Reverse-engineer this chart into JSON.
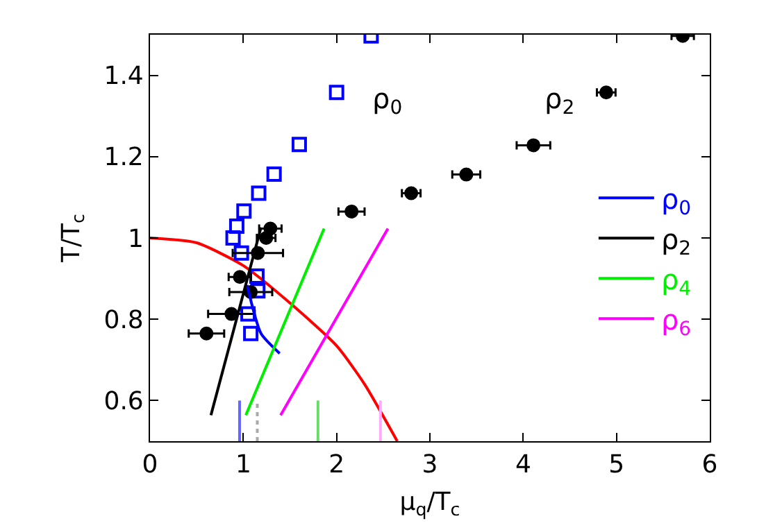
{
  "chart_data": {
    "type": "scatter",
    "xlabel": "μ$_{q}$/T$_{c}$",
    "ylabel": "T/T$_{c}$",
    "xlim": [
      0,
      6
    ],
    "xticks": [
      0,
      1,
      2,
      3,
      4,
      5,
      6
    ],
    "ylim": [
      0.5,
      1.5
    ],
    "yticks": [
      {
        "value": 0.6,
        "label": "0.6"
      },
      {
        "value": 0.8,
        "label": "0.8"
      },
      1,
      {
        "value": 1.2,
        "label": "1.2"
      },
      {
        "value": 1.4,
        "label": "1.4"
      }
    ],
    "legend": "right",
    "series": [
      {
        "type": "line",
        "color": "#ff0000",
        "line_style": "solid",
        "marker": "none",
        "x": [
          0,
          0.5,
          1,
          1.5,
          2,
          2.3,
          2.65
        ],
        "values": [
          1,
          0.988,
          0.932,
          0.84,
          0.735,
          0.64,
          0.5
        ]
      },
      {
        "type": "line",
        "color": "#6666ff",
        "line_style": "solid",
        "marker": "none",
        "x": [
          0.96,
          0.96
        ],
        "values": [
          0.5,
          0.6
        ]
      },
      {
        "type": "line",
        "color": "#aaaaaa",
        "line_style": "dotted",
        "marker": "none",
        "x": [
          1.15,
          1.15
        ],
        "values": [
          0.5,
          0.6
        ]
      },
      {
        "type": "line",
        "color": "#66dd66",
        "line_style": "solid",
        "marker": "none",
        "x": [
          1.8,
          1.8
        ],
        "values": [
          0.5,
          0.6
        ]
      },
      {
        "type": "line",
        "color": "#ffaaff",
        "line_style": "solid",
        "marker": "none",
        "x": [
          2.47,
          2.47
        ],
        "values": [
          0.5,
          0.6
        ]
      },
      {
        "color": "#0000ff",
        "marker": "square",
        "x": [
          2.37,
          2.0,
          1.6,
          1.33,
          1.165,
          1.007,
          0.93,
          0.89,
          0.98,
          1.146,
          1.156,
          1.05,
          1.08
        ],
        "values": [
          1.497,
          1.358,
          1.23,
          1.157,
          1.11,
          1.066,
          1.029,
          1.0,
          0.963,
          0.906,
          0.87,
          0.813,
          0.765
        ]
      },
      {
        "color": "#000000",
        "marker": "circle",
        "x": [
          0.605,
          0.873,
          0.963,
          1.08,
          1.156,
          1.245,
          1.29,
          2.16,
          2.8,
          3.39,
          4.11,
          4.89,
          5.71
        ],
        "values": [
          0.765,
          0.813,
          0.904,
          0.867,
          0.963,
          1.0,
          1.023,
          1.065,
          1.11,
          1.156,
          1.228,
          1.358,
          1.497
        ],
        "xerrors": [
          0.19,
          0.25,
          0.12,
          0.23,
          0.27,
          0.1,
          0.12,
          0.14,
          0.1,
          0.15,
          0.18,
          0.1,
          0.12
        ]
      },
      {
        "type": "line",
        "name": "ρ$_{0}$",
        "color": "#0000ff",
        "line_style": "solid",
        "marker": "none",
        "x": [
          1.04,
          1.19,
          1.39
        ],
        "values": [
          0.884,
          0.765,
          0.716
        ]
      },
      {
        "type": "line",
        "name": "ρ$_{2}$",
        "color": "#000000",
        "line_style": "solid",
        "marker": "none",
        "x": [
          0.653,
          1.19
        ],
        "values": [
          0.564,
          1.026
        ]
      },
      {
        "type": "line",
        "name": "ρ$_{4}$",
        "color": "#00ee00",
        "line_style": "solid",
        "marker": "none",
        "x": [
          1.027,
          1.866
        ],
        "values": [
          0.564,
          1.023
        ]
      },
      {
        "type": "line",
        "name": "ρ$_{6}$",
        "color": "#ff00ff",
        "line_style": "solid",
        "marker": "none",
        "x": [
          1.4,
          2.55
        ],
        "values": [
          0.564,
          1.023
        ]
      }
    ],
    "annotations": [
      "ρ$_{0}$",
      "ρ$_{2}$"
    ]
  }
}
